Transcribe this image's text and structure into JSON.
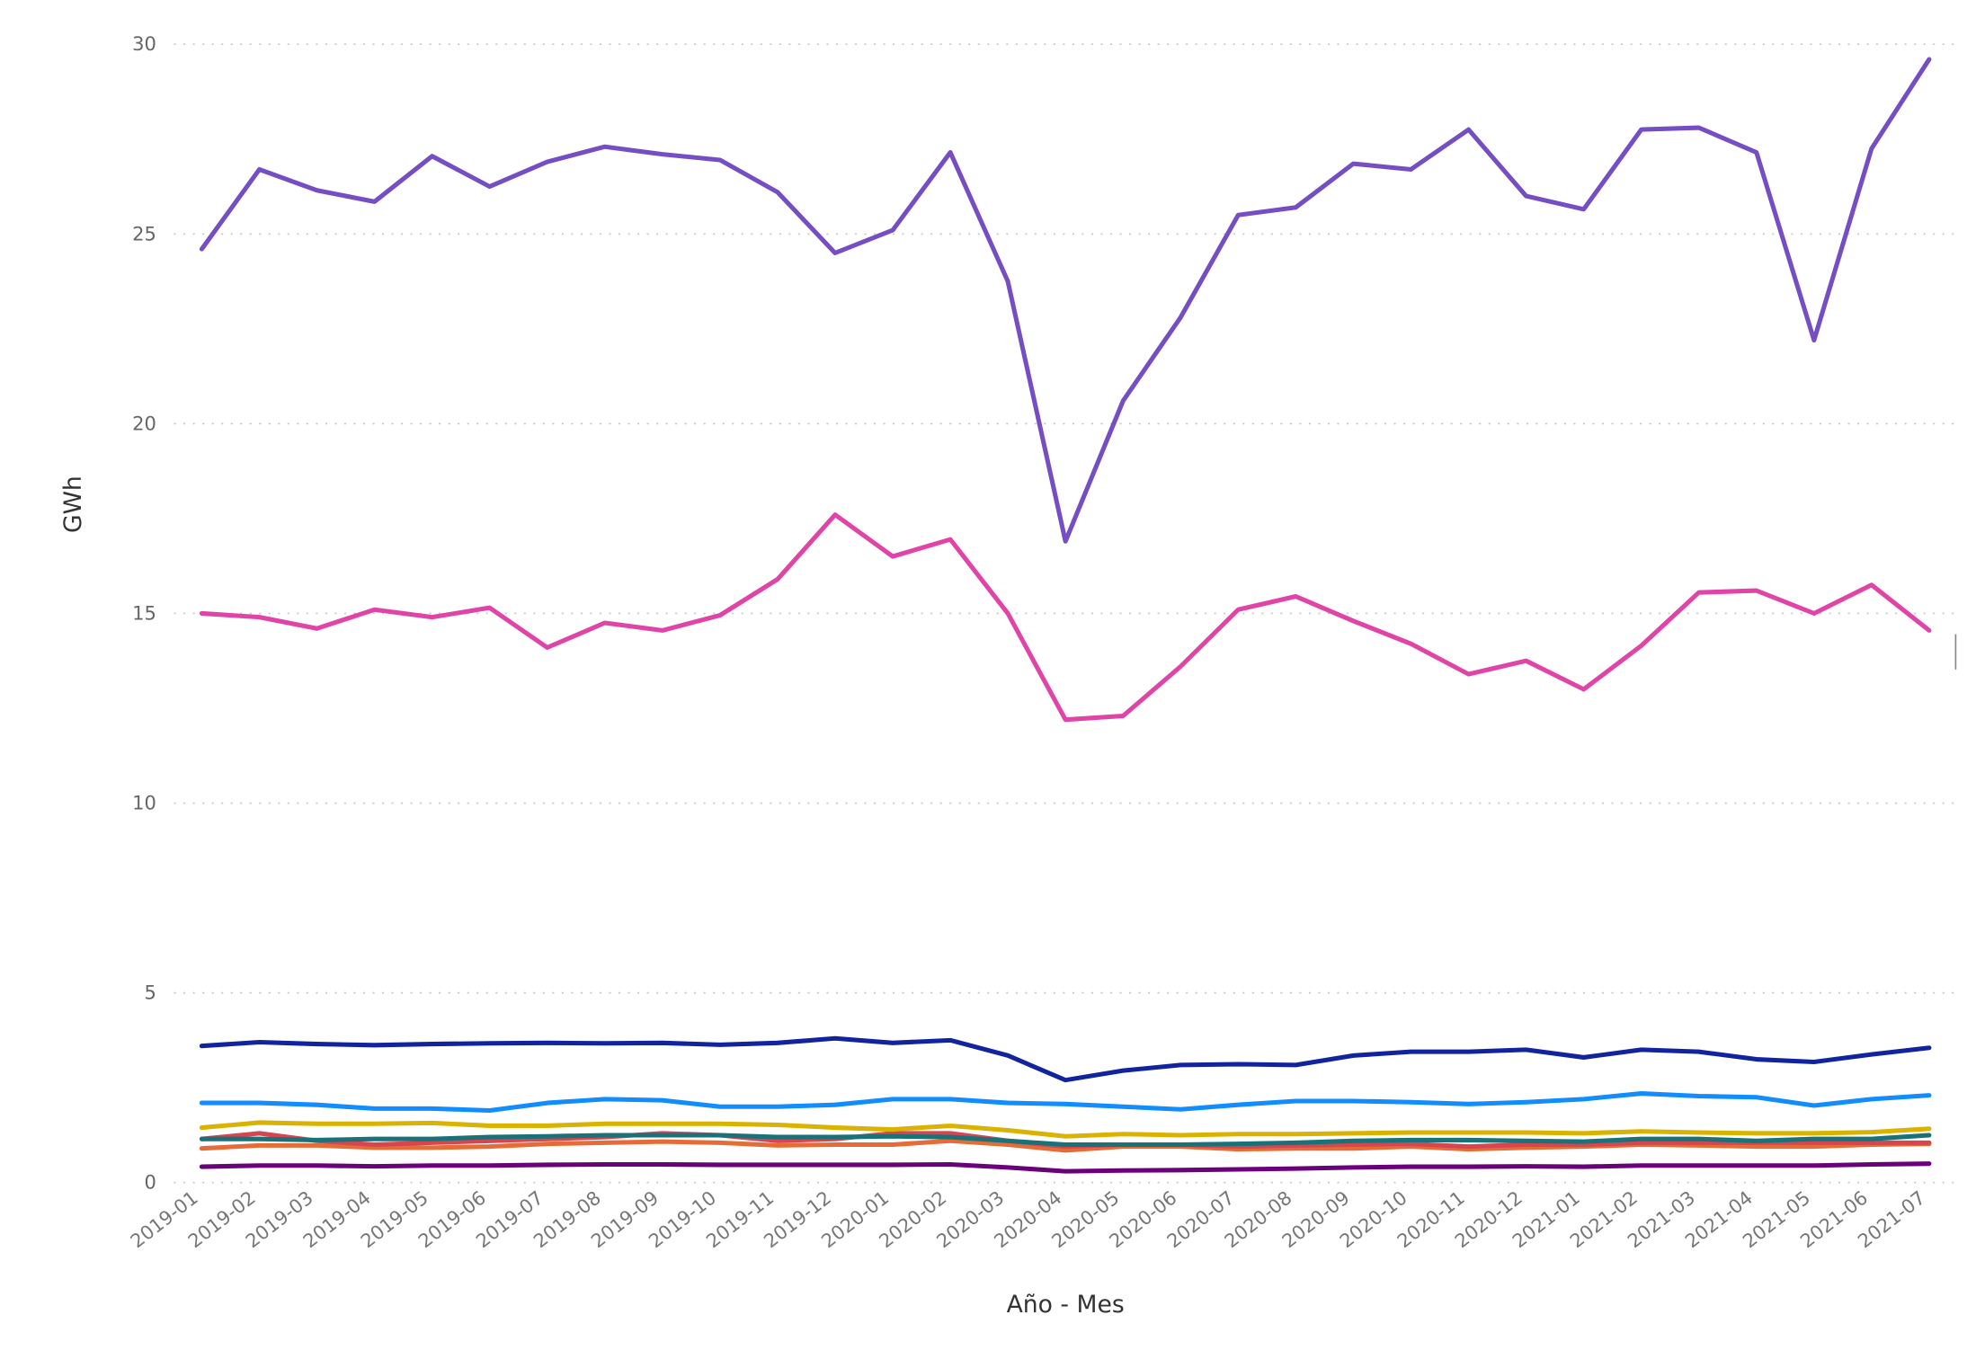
{
  "chart_data": {
    "type": "line",
    "title": "",
    "xlabel": "Año - Mes",
    "ylabel": "GWh",
    "ylim": [
      0,
      30
    ],
    "yticks": [
      0,
      5,
      10,
      15,
      20,
      25,
      30
    ],
    "grid": true,
    "legend": "none",
    "x": [
      "2019-01",
      "2019-02",
      "2019-03",
      "2019-04",
      "2019-05",
      "2019-06",
      "2019-07",
      "2019-08",
      "2019-09",
      "2019-10",
      "2019-11",
      "2019-12",
      "2020-01",
      "2020-02",
      "2020-03",
      "2020-04",
      "2020-05",
      "2020-06",
      "2020-07",
      "2020-08",
      "2020-09",
      "2020-10",
      "2020-11",
      "2020-12",
      "2021-01",
      "2021-02",
      "2021-03",
      "2021-04",
      "2021-05",
      "2021-06",
      "2021-07"
    ],
    "series": [
      {
        "color": "#6B007B",
        "values": [
          0.42,
          0.45,
          0.45,
          0.43,
          0.45,
          0.45,
          0.47,
          0.48,
          0.48,
          0.47,
          0.47,
          0.47,
          0.47,
          0.48,
          0.4,
          0.3,
          0.32,
          0.33,
          0.35,
          0.37,
          0.4,
          0.42,
          0.42,
          0.43,
          0.42,
          0.45,
          0.45,
          0.45,
          0.45,
          0.48,
          0.5
        ]
      },
      {
        "color": "#E66C37",
        "values": [
          0.9,
          0.98,
          0.98,
          0.92,
          0.92,
          0.95,
          1.02,
          1.05,
          1.08,
          1.05,
          0.98,
          1.0,
          1.0,
          1.1,
          1.0,
          0.85,
          0.95,
          0.95,
          0.88,
          0.9,
          0.9,
          0.95,
          0.88,
          0.92,
          0.95,
          1.0,
          0.98,
          0.95,
          0.95,
          1.0,
          1.02
        ]
      },
      {
        "color": "#D64550",
        "values": [
          1.15,
          1.3,
          1.1,
          1.0,
          1.05,
          1.1,
          1.15,
          1.2,
          1.3,
          1.25,
          1.1,
          1.15,
          1.3,
          1.3,
          1.1,
          0.95,
          1.0,
          1.0,
          0.95,
          0.98,
          1.0,
          1.02,
          0.95,
          1.0,
          1.0,
          1.05,
          1.05,
          1.05,
          1.05,
          1.05,
          1.05
        ]
      },
      {
        "color": "#197278",
        "values": [
          1.15,
          1.15,
          1.12,
          1.15,
          1.15,
          1.2,
          1.22,
          1.25,
          1.25,
          1.25,
          1.2,
          1.2,
          1.22,
          1.2,
          1.1,
          1.0,
          1.0,
          1.0,
          1.02,
          1.05,
          1.1,
          1.12,
          1.12,
          1.1,
          1.08,
          1.15,
          1.15,
          1.1,
          1.15,
          1.15,
          1.25
        ]
      },
      {
        "color": "#D9B300",
        "values": [
          1.45,
          1.58,
          1.55,
          1.55,
          1.57,
          1.5,
          1.5,
          1.55,
          1.55,
          1.55,
          1.52,
          1.45,
          1.4,
          1.5,
          1.38,
          1.22,
          1.28,
          1.25,
          1.28,
          1.28,
          1.3,
          1.32,
          1.32,
          1.32,
          1.3,
          1.35,
          1.32,
          1.3,
          1.3,
          1.33,
          1.42
        ]
      },
      {
        "color": "#118DFF",
        "values": [
          2.1,
          2.1,
          2.05,
          1.95,
          1.95,
          1.9,
          2.1,
          2.2,
          2.17,
          2.0,
          2.0,
          2.05,
          2.2,
          2.2,
          2.1,
          2.07,
          2.0,
          1.93,
          2.05,
          2.15,
          2.15,
          2.12,
          2.07,
          2.12,
          2.2,
          2.35,
          2.28,
          2.25,
          2.03,
          2.2,
          2.3
        ]
      },
      {
        "color": "#12239E",
        "values": [
          3.6,
          3.7,
          3.65,
          3.62,
          3.65,
          3.67,
          3.68,
          3.67,
          3.68,
          3.63,
          3.68,
          3.8,
          3.68,
          3.75,
          3.35,
          2.7,
          2.95,
          3.1,
          3.12,
          3.1,
          3.35,
          3.45,
          3.45,
          3.5,
          3.3,
          3.5,
          3.45,
          3.25,
          3.18,
          3.38,
          3.55
        ]
      },
      {
        "color": "#E044A7",
        "values": [
          15.0,
          14.9,
          14.6,
          15.1,
          14.9,
          15.15,
          14.1,
          14.75,
          14.55,
          14.95,
          15.9,
          17.6,
          16.5,
          16.95,
          15.0,
          12.2,
          12.3,
          13.6,
          15.1,
          15.45,
          14.8,
          14.2,
          13.4,
          13.75,
          13.0,
          14.15,
          15.55,
          15.6,
          15.0,
          15.75,
          14.55
        ]
      },
      {
        "color": "#744EC2",
        "values": [
          24.6,
          26.7,
          26.15,
          25.85,
          27.05,
          26.25,
          26.9,
          27.3,
          27.1,
          26.95,
          26.1,
          24.5,
          25.1,
          27.15,
          23.75,
          16.9,
          20.6,
          22.8,
          25.5,
          25.7,
          26.85,
          26.7,
          27.75,
          26.0,
          25.65,
          27.75,
          27.8,
          27.15,
          22.2,
          27.25,
          29.6
        ]
      }
    ]
  }
}
